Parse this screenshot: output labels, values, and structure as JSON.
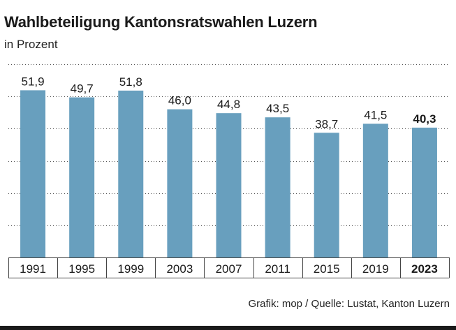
{
  "title": "Wahlbeteiligung Kantonsratswahlen Luzern",
  "subtitle": "in Prozent",
  "source": "Grafik: mop / Quelle: Lustat, Kanton Luzern",
  "colors": {
    "bar": "#689fbe",
    "text": "#1a1a1a",
    "grid": "#555555"
  },
  "chart_data": {
    "type": "bar",
    "categories": [
      "1991",
      "1995",
      "1999",
      "2003",
      "2007",
      "2011",
      "2015",
      "2019",
      "2023"
    ],
    "values": [
      51.9,
      49.7,
      51.8,
      46.0,
      44.8,
      43.5,
      38.7,
      41.5,
      40.3
    ],
    "labels": [
      "51,9",
      "49,7",
      "51,8",
      "46,0",
      "44,8",
      "43,5",
      "38,7",
      "41,5",
      "40,3"
    ],
    "highlight_category": "2023",
    "ylim": [
      0,
      60
    ],
    "grid": true,
    "grid_style": "dotted",
    "xlabel": "",
    "ylabel": ""
  }
}
